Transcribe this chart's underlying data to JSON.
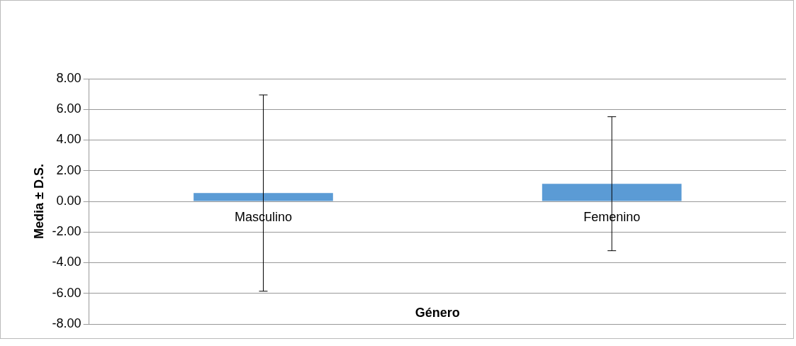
{
  "chart_data": {
    "type": "bar",
    "xlabel": "Género",
    "ylabel": "Media ± D.S.",
    "categories": [
      "Masculino",
      "Femenino"
    ],
    "values": [
      0.54,
      1.15
    ],
    "errors": [
      6.4,
      4.37
    ],
    "color": "#5b9bd5",
    "ylim": [
      -8,
      8
    ],
    "yticks": [
      {
        "value": -8,
        "label": "-8.00"
      },
      {
        "value": -6,
        "label": "-6.00"
      },
      {
        "value": -4,
        "label": "-4.00"
      },
      {
        "value": -2,
        "label": "-2.00"
      },
      {
        "value": 0,
        "label": "0.00"
      },
      {
        "value": 2,
        "label": "2.00"
      },
      {
        "value": 4,
        "label": "4.00"
      },
      {
        "value": 6,
        "label": "6.00"
      },
      {
        "value": 8,
        "label": "8.00"
      }
    ],
    "grid": "y",
    "legend": false
  }
}
